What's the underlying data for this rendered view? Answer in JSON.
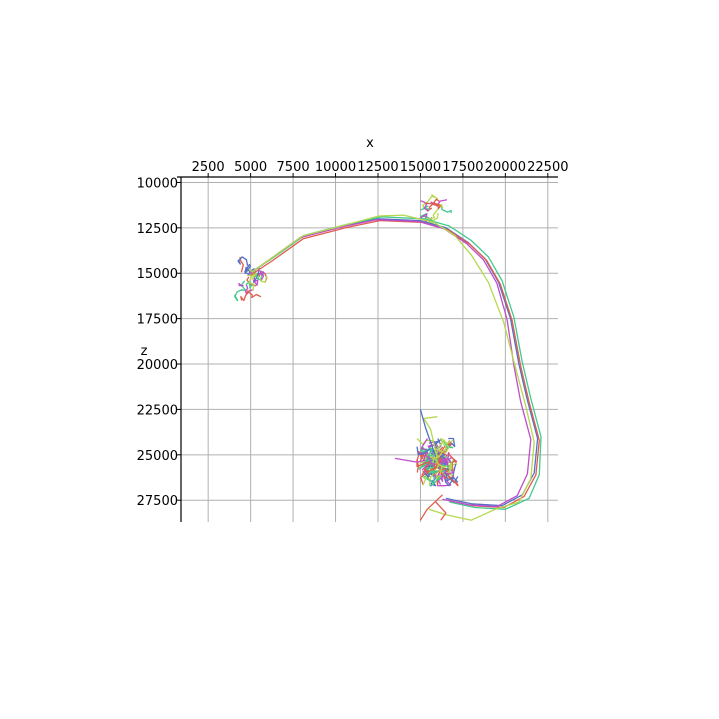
{
  "chart_data": {
    "type": "line",
    "title": "",
    "xlabel": "x",
    "ylabel": "z",
    "xlim": [
      900,
      23100
    ],
    "ylim": [
      28700,
      9700
    ],
    "x_ticks": [
      2500,
      5000,
      7500,
      10000,
      12500,
      15000,
      17500,
      20000,
      22500
    ],
    "x_tick_labels": [
      "2500",
      "5000",
      "7500",
      "10000",
      "12500",
      "15000",
      "17500",
      "20000",
      "22500"
    ],
    "y_ticks": [
      10000,
      12500,
      15000,
      17500,
      20000,
      22500,
      25000,
      27500
    ],
    "y_tick_labels": [
      "10000",
      "12500",
      "15000",
      "17500",
      "20000",
      "22500",
      "25000",
      "27500"
    ],
    "xaxis_position": "top",
    "y_inverted": true,
    "grid": true,
    "legend": "none",
    "series": [
      {
        "color": "#5470c6",
        "points": [
          [
            5000,
            15000
          ],
          [
            6200,
            14200
          ],
          [
            8000,
            13000
          ],
          [
            10500,
            12400
          ],
          [
            12500,
            12000
          ],
          [
            15000,
            12100
          ],
          [
            16500,
            12500
          ],
          [
            17800,
            13300
          ],
          [
            18800,
            14200
          ],
          [
            19600,
            15500
          ],
          [
            20300,
            17500
          ],
          [
            20800,
            20000
          ],
          [
            21300,
            22000
          ],
          [
            21900,
            24100
          ],
          [
            21700,
            26000
          ],
          [
            21000,
            27200
          ],
          [
            19800,
            27800
          ],
          [
            18000,
            27700
          ],
          [
            16500,
            27400
          ]
        ]
      },
      {
        "color": "#e05c4e",
        "points": [
          [
            5000,
            15100
          ],
          [
            6300,
            14300
          ],
          [
            8100,
            13100
          ],
          [
            10600,
            12500
          ],
          [
            12600,
            12100
          ],
          [
            15100,
            12200
          ],
          [
            16600,
            12600
          ],
          [
            17900,
            13400
          ],
          [
            18900,
            14300
          ],
          [
            19700,
            15600
          ],
          [
            20400,
            17600
          ],
          [
            20900,
            20100
          ],
          [
            21400,
            22100
          ],
          [
            22000,
            24200
          ],
          [
            21800,
            26100
          ],
          [
            21100,
            27300
          ],
          [
            19900,
            27900
          ],
          [
            18100,
            27800
          ],
          [
            16600,
            27500
          ]
        ]
      },
      {
        "color": "#43c98e",
        "points": [
          [
            5100,
            14900
          ],
          [
            6400,
            14100
          ],
          [
            8200,
            12900
          ],
          [
            10700,
            12300
          ],
          [
            12700,
            11900
          ],
          [
            15200,
            12000
          ],
          [
            16700,
            12400
          ],
          [
            18000,
            13200
          ],
          [
            19000,
            14100
          ],
          [
            19800,
            15400
          ],
          [
            20500,
            17400
          ],
          [
            21000,
            19900
          ],
          [
            21500,
            21900
          ],
          [
            22100,
            24000
          ],
          [
            22000,
            26100
          ],
          [
            21400,
            27400
          ],
          [
            20000,
            28000
          ],
          [
            18200,
            27900
          ],
          [
            16700,
            27600
          ]
        ]
      },
      {
        "color": "#c04ccc",
        "points": [
          [
            4900,
            15050
          ],
          [
            6100,
            14250
          ],
          [
            7900,
            13050
          ],
          [
            10400,
            12450
          ],
          [
            12400,
            12050
          ],
          [
            14900,
            12150
          ],
          [
            16400,
            12550
          ],
          [
            17700,
            13350
          ],
          [
            18700,
            14250
          ],
          [
            19500,
            15550
          ],
          [
            20100,
            17550
          ],
          [
            20500,
            20050
          ],
          [
            20900,
            22050
          ],
          [
            21500,
            24150
          ],
          [
            21300,
            26050
          ],
          [
            20700,
            27250
          ],
          [
            19500,
            27850
          ],
          [
            17800,
            27750
          ],
          [
            16300,
            27450
          ]
        ]
      },
      {
        "color": "#b4d94c",
        "points": [
          [
            5050,
            14950
          ],
          [
            6250,
            14150
          ],
          [
            8050,
            12950
          ],
          [
            10550,
            12350
          ],
          [
            12550,
            11850
          ],
          [
            14000,
            11800
          ],
          [
            15800,
            12200
          ],
          [
            17000,
            12900
          ],
          [
            18000,
            14000
          ],
          [
            19000,
            15500
          ],
          [
            19900,
            17700
          ],
          [
            20600,
            20200
          ],
          [
            21200,
            22300
          ],
          [
            21700,
            24300
          ],
          [
            21500,
            26300
          ],
          [
            20800,
            27600
          ],
          [
            19400,
            28000
          ],
          [
            18000,
            28600
          ],
          [
            16500,
            28300
          ],
          [
            15500,
            28000
          ]
        ]
      }
    ],
    "clusters": [
      {
        "center": [
          5000,
          15300
        ],
        "spread": [
          1900,
          2400
        ],
        "count": 22,
        "colors": [
          "#e05c4e",
          "#43c98e",
          "#c04ccc",
          "#b4d94c",
          "#5470c6"
        ]
      },
      {
        "center": [
          16000,
          25400
        ],
        "spread": [
          2400,
          2600
        ],
        "count": 90,
        "colors": [
          "#5470c6",
          "#e05c4e",
          "#43c98e",
          "#c04ccc",
          "#b4d94c"
        ]
      },
      {
        "center": [
          15700,
          11400
        ],
        "spread": [
          2400,
          1800
        ],
        "count": 12,
        "colors": [
          "#43c98e",
          "#c04ccc",
          "#b4d94c",
          "#e05c4e"
        ]
      }
    ],
    "spurs": [
      {
        "color": "#b4d94c",
        "points": [
          [
            16000,
            25200
          ],
          [
            15600,
            23600
          ],
          [
            15200,
            23000
          ],
          [
            16000,
            22900
          ]
        ]
      },
      {
        "color": "#5470c6",
        "points": [
          [
            15900,
            25100
          ],
          [
            15300,
            23500
          ],
          [
            15000,
            22500
          ]
        ]
      },
      {
        "color": "#c04ccc",
        "points": [
          [
            15300,
            25300
          ],
          [
            14800,
            25400
          ],
          [
            13500,
            25200
          ]
        ]
      },
      {
        "color": "#e05c4e",
        "points": [
          [
            16300,
            27200
          ],
          [
            15400,
            28000
          ],
          [
            15000,
            28600
          ]
        ]
      },
      {
        "color": "#e05c4e",
        "points": [
          [
            15900,
            27600
          ],
          [
            16500,
            28200
          ],
          [
            16200,
            28600
          ]
        ]
      }
    ]
  }
}
